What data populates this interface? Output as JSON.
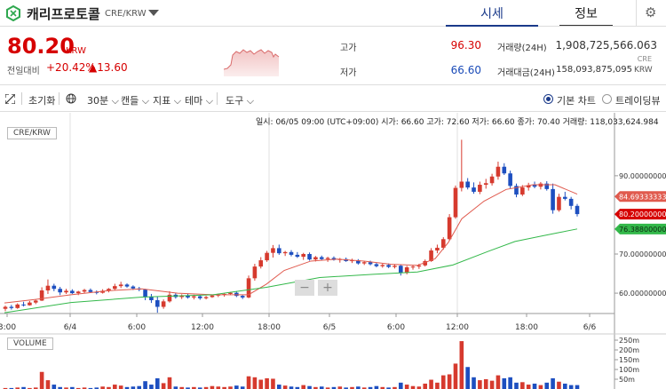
{
  "header": {
    "coin_name": "캐리프로토콜",
    "pair": "CRE/KRW",
    "tab_quote": "시세",
    "tab_info": "정보"
  },
  "price": {
    "current": "80.20",
    "unit": "KRW",
    "change_label": "전일대비",
    "change_rate": "+20.42%",
    "change_value": "▲13.60",
    "high_label": "고가",
    "high_value": "96.30",
    "low_label": "저가",
    "low_value": "66.60",
    "volume_label": "거래량(24H)",
    "volume_value": "1,908,725,566.063",
    "volume_unit": "CRE",
    "amount_label": "거래대금(24H)",
    "amount_value": "158,093,875,095",
    "amount_unit": "KRW"
  },
  "toolbar": {
    "reset": "초기화",
    "interval": "30분",
    "candle": "캔들",
    "indicator": "지표",
    "theme": "테마",
    "tools": "도구",
    "basic_chart": "기본 차트",
    "trading_view": "트레이딩뷰"
  },
  "chart": {
    "legend": "CRE/KRW",
    "volume_legend": "VOLUME",
    "ohlc_text": "일시: 06/05 09:00 (UTC+09:00) 시가: 66.60 고가: 72.60 저가: 66.60 종가: 70.40 거래량: 118,033,624.984",
    "zoom_out": "−",
    "zoom_in": "+"
  },
  "chart_data": {
    "type": "candlestick",
    "y_ticks": [
      "90.00000000",
      "80.00000000",
      "70.00000000",
      "60.00000000"
    ],
    "ylim": [
      54.8,
      102
    ],
    "x_ticks": [
      "3:00",
      "6/4",
      "6:00",
      "12:00",
      "18:00",
      "6/5",
      "6:00",
      "12:00",
      "18:00",
      "6/6"
    ],
    "price_tags": [
      {
        "label": "84.69333333",
        "value": 84.69,
        "color": "#e05a4e"
      },
      {
        "label": "80.20000000",
        "value": 80.2,
        "color": "#d60000"
      },
      {
        "label": "76.38800000",
        "value": 76.39,
        "color": "#33b84a"
      }
    ],
    "volume_ticks": [
      "250m",
      "200m",
      "150m",
      "100m",
      "50m"
    ],
    "candles": [
      [
        56,
        56.8,
        55.4,
        56.5
      ],
      [
        56.5,
        57,
        55.8,
        56.2
      ],
      [
        56.2,
        57.4,
        56,
        57.1
      ],
      [
        57.1,
        57.8,
        56.6,
        56.9
      ],
      [
        56.9,
        58,
        56.8,
        57.6
      ],
      [
        57.6,
        58.3,
        57.2,
        58.1
      ],
      [
        58.1,
        61.5,
        58,
        60.7
      ],
      [
        60.7,
        63.5,
        59.8,
        61.9
      ],
      [
        61.9,
        62.4,
        60.5,
        61.1
      ],
      [
        61.1,
        61.6,
        59.5,
        60.2
      ],
      [
        60.2,
        61.1,
        59.8,
        60.6
      ],
      [
        60.6,
        61,
        59.8,
        60
      ],
      [
        60,
        60.6,
        59.5,
        60.4
      ],
      [
        60.4,
        61.1,
        60,
        60.8
      ],
      [
        60.8,
        61.2,
        60.1,
        60.3
      ],
      [
        60.3,
        60.7,
        59.7,
        60.1
      ],
      [
        60.1,
        61,
        59.9,
        60.6
      ],
      [
        60.6,
        61.3,
        60.2,
        61.1
      ],
      [
        61.1,
        62.4,
        60.8,
        61.8
      ],
      [
        61.8,
        62.9,
        61.3,
        62.2
      ],
      [
        62.2,
        62.5,
        61.4,
        61.7
      ],
      [
        61.7,
        62,
        60.8,
        61.2
      ],
      [
        61.2,
        61.6,
        60.5,
        60.9
      ],
      [
        60.9,
        61.1,
        58.2,
        59
      ],
      [
        59,
        59.8,
        57.5,
        58.2
      ],
      [
        58.2,
        59.1,
        55,
        56.5
      ],
      [
        56.5,
        58.4,
        56,
        57.9
      ],
      [
        57.9,
        60.5,
        57.6,
        59.6
      ],
      [
        59.6,
        60,
        58.6,
        59
      ],
      [
        59,
        59.7,
        58.5,
        59.4
      ],
      [
        59.4,
        59.8,
        58.6,
        58.9
      ],
      [
        58.9,
        59.6,
        58.4,
        59.2
      ],
      [
        59.2,
        59.5,
        58.3,
        58.7
      ],
      [
        58.7,
        59.3,
        58.4,
        59
      ],
      [
        59,
        59.6,
        58.8,
        59.4
      ],
      [
        59.4,
        59.9,
        59,
        59.6
      ],
      [
        59.6,
        60,
        59.1,
        59.8
      ],
      [
        59.8,
        60.3,
        59.5,
        60.1
      ],
      [
        60.1,
        60.5,
        59,
        59.3
      ],
      [
        59.3,
        59.6,
        58.5,
        58.9
      ],
      [
        58.9,
        64.5,
        58.7,
        63.8
      ],
      [
        63.8,
        67.5,
        63.2,
        66.8
      ],
      [
        66.8,
        69.2,
        66.3,
        68.4
      ],
      [
        68.4,
        70.8,
        68,
        70.3
      ],
      [
        70.3,
        72.3,
        69.1,
        71.5
      ],
      [
        71.5,
        72.4,
        69.8,
        70.2
      ],
      [
        70.2,
        70.8,
        69.5,
        70.5
      ],
      [
        70.5,
        71,
        69.4,
        69.8
      ],
      [
        69.8,
        70.5,
        69,
        69.3
      ],
      [
        69.3,
        70.3,
        68.5,
        70
      ],
      [
        70,
        70.4,
        68.3,
        68.6
      ],
      [
        68.6,
        69.5,
        68.1,
        69.2
      ],
      [
        69.2,
        69.6,
        68.4,
        68.7
      ],
      [
        68.7,
        69.3,
        68,
        69
      ],
      [
        69,
        69.4,
        68.3,
        68.5
      ],
      [
        68.5,
        69,
        67.8,
        68.7
      ],
      [
        68.7,
        69.1,
        68,
        68.2
      ],
      [
        68.2,
        68.8,
        67.7,
        68.4
      ],
      [
        68.4,
        68.7,
        67.3,
        67.6
      ],
      [
        67.6,
        68.2,
        67.2,
        67.9
      ],
      [
        67.9,
        68.3,
        67.1,
        67.4
      ],
      [
        67.4,
        67.8,
        66.6,
        66.9
      ],
      [
        66.9,
        67.5,
        66.5,
        67.2
      ],
      [
        67.2,
        67.6,
        66.4,
        66.7
      ],
      [
        66.7,
        67.3,
        66.3,
        67
      ],
      [
        67,
        67.4,
        64.5,
        65.2
      ],
      [
        65.2,
        67,
        64.8,
        66.6
      ],
      [
        66.6,
        67.2,
        66,
        66.8
      ],
      [
        66.8,
        67.5,
        66.2,
        67.1
      ],
      [
        67.1,
        68.6,
        66.8,
        68.2
      ],
      [
        68.2,
        71.5,
        68,
        70.9
      ],
      [
        70.9,
        72.4,
        70.2,
        71.6
      ],
      [
        71.6,
        74.3,
        71.1,
        73.8
      ],
      [
        73.8,
        80.2,
        73.5,
        79.4
      ],
      [
        79.4,
        87.5,
        79,
        86.9
      ],
      [
        86.9,
        99.2,
        86,
        88.5
      ],
      [
        88.5,
        89.4,
        86.5,
        87
      ],
      [
        87,
        88.3,
        85.4,
        85.9
      ],
      [
        85.9,
        88.5,
        85.3,
        87.7
      ],
      [
        87.7,
        89.2,
        86.7,
        88.1
      ],
      [
        88.1,
        90.5,
        87.5,
        89.8
      ],
      [
        89.8,
        93.6,
        89,
        92.3
      ],
      [
        92.3,
        93.2,
        90.2,
        90.6
      ],
      [
        90.6,
        91.3,
        86.8,
        87.4
      ],
      [
        87.4,
        88,
        84.5,
        85.2
      ],
      [
        85.2,
        87.6,
        84.8,
        87
      ],
      [
        87,
        88.2,
        86.2,
        87.6
      ],
      [
        87.6,
        88.5,
        86.8,
        87.2
      ],
      [
        87.2,
        88.4,
        86.5,
        88
      ],
      [
        88,
        88.6,
        86.2,
        86.6
      ],
      [
        86.6,
        88,
        80.3,
        81.2
      ],
      [
        81.2,
        85.4,
        80.8,
        84.6
      ],
      [
        84.6,
        85.9,
        83.7,
        84.1
      ],
      [
        84.1,
        84.6,
        81.4,
        82.3
      ],
      [
        82.3,
        82.8,
        79.6,
        80.2
      ]
    ],
    "ma_fast": [
      [
        5,
        57.5
      ],
      [
        40,
        58.4
      ],
      [
        80,
        59.6
      ],
      [
        120,
        60.6
      ],
      [
        160,
        61.1
      ],
      [
        200,
        60
      ],
      [
        240,
        59.6
      ],
      [
        280,
        59.6
      ],
      [
        300,
        62.3
      ],
      [
        320,
        65.8
      ],
      [
        350,
        68.2
      ],
      [
        380,
        68.7
      ],
      [
        410,
        68.2
      ],
      [
        440,
        67.4
      ],
      [
        470,
        67.1
      ],
      [
        490,
        68.8
      ],
      [
        505,
        73
      ],
      [
        520,
        79
      ],
      [
        545,
        83.5
      ],
      [
        570,
        86.5
      ],
      [
        600,
        87.7
      ],
      [
        625,
        87.7
      ],
      [
        650,
        85.3
      ]
    ],
    "ma_slow": [
      [
        5,
        55
      ],
      [
        80,
        57.6
      ],
      [
        160,
        59
      ],
      [
        240,
        59.6
      ],
      [
        300,
        61.5
      ],
      [
        360,
        64
      ],
      [
        420,
        64.8
      ],
      [
        470,
        65.4
      ],
      [
        510,
        67.2
      ],
      [
        550,
        70.7
      ],
      [
        580,
        73.2
      ],
      [
        610,
        74.6
      ],
      [
        630,
        75.5
      ],
      [
        650,
        76.4
      ]
    ],
    "volumes": [
      [
        0,
        2
      ],
      [
        1,
        2
      ],
      [
        2,
        3
      ],
      [
        3,
        4
      ],
      [
        4,
        2
      ],
      [
        5,
        3
      ],
      [
        6,
        35
      ],
      [
        7,
        18
      ],
      [
        8,
        9
      ],
      [
        9,
        4
      ],
      [
        10,
        3
      ],
      [
        11,
        4
      ],
      [
        12,
        2
      ],
      [
        13,
        3
      ],
      [
        14,
        2
      ],
      [
        15,
        3
      ],
      [
        16,
        5
      ],
      [
        17,
        4
      ],
      [
        18,
        9
      ],
      [
        19,
        7
      ],
      [
        20,
        4
      ],
      [
        21,
        5
      ],
      [
        22,
        6
      ],
      [
        23,
        16
      ],
      [
        24,
        9
      ],
      [
        25,
        22
      ],
      [
        26,
        12
      ],
      [
        27,
        24
      ],
      [
        28,
        5
      ],
      [
        29,
        4
      ],
      [
        30,
        3
      ],
      [
        31,
        4
      ],
      [
        32,
        3
      ],
      [
        33,
        4
      ],
      [
        34,
        6
      ],
      [
        35,
        5
      ],
      [
        36,
        4
      ],
      [
        37,
        5
      ],
      [
        38,
        7
      ],
      [
        39,
        5
      ],
      [
        40,
        26
      ],
      [
        41,
        24
      ],
      [
        42,
        19
      ],
      [
        43,
        22
      ],
      [
        44,
        21
      ],
      [
        45,
        9
      ],
      [
        46,
        7
      ],
      [
        47,
        5
      ],
      [
        48,
        4
      ],
      [
        49,
        8
      ],
      [
        50,
        6
      ],
      [
        51,
        4
      ],
      [
        52,
        5
      ],
      [
        53,
        3
      ],
      [
        54,
        4
      ],
      [
        55,
        5
      ],
      [
        56,
        3
      ],
      [
        57,
        4
      ],
      [
        58,
        5
      ],
      [
        59,
        3
      ],
      [
        60,
        4
      ],
      [
        61,
        6
      ],
      [
        62,
        4
      ],
      [
        63,
        3
      ],
      [
        64,
        4
      ],
      [
        65,
        13
      ],
      [
        66,
        9
      ],
      [
        67,
        6
      ],
      [
        68,
        5
      ],
      [
        69,
        11
      ],
      [
        70,
        19
      ],
      [
        71,
        13
      ],
      [
        72,
        28
      ],
      [
        73,
        30
      ],
      [
        74,
        52
      ],
      [
        75,
        98
      ],
      [
        76,
        45
      ],
      [
        77,
        24
      ],
      [
        78,
        18
      ],
      [
        79,
        20
      ],
      [
        80,
        17
      ],
      [
        81,
        28
      ],
      [
        82,
        22
      ],
      [
        83,
        24
      ],
      [
        84,
        13
      ],
      [
        85,
        14
      ],
      [
        86,
        9
      ],
      [
        87,
        11
      ],
      [
        88,
        8
      ],
      [
        89,
        13
      ],
      [
        90,
        22
      ],
      [
        91,
        15
      ],
      [
        92,
        11
      ],
      [
        93,
        8
      ],
      [
        94,
        8
      ]
    ]
  }
}
